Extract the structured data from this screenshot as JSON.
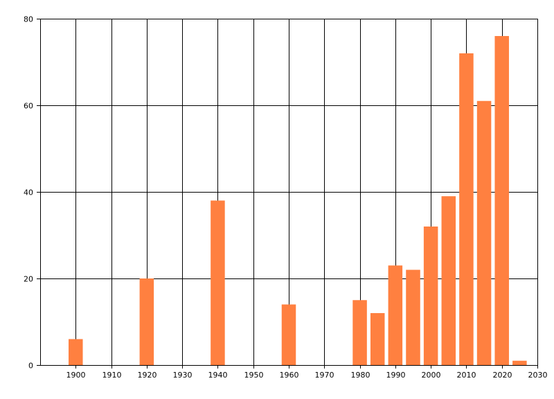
{
  "chart_data": {
    "type": "bar",
    "title": "",
    "xlabel": "",
    "ylabel": "",
    "x": [
      1900,
      1920,
      1940,
      1960,
      1980,
      1985,
      1990,
      1995,
      2000,
      2005,
      2010,
      2015,
      2020,
      2025
    ],
    "values": [
      6,
      20,
      38,
      14,
      15,
      12,
      23,
      22,
      32,
      39,
      72,
      61,
      76,
      1
    ],
    "bar_width_years": 4,
    "xlim": [
      1890,
      2030
    ],
    "ylim": [
      0,
      80
    ],
    "xticks": [
      1900,
      1910,
      1920,
      1930,
      1940,
      1950,
      1960,
      1970,
      1980,
      1990,
      2000,
      2010,
      2020,
      2030
    ],
    "yticks": [
      0,
      20,
      40,
      60,
      80
    ],
    "grid": true,
    "bar_color": "#ff8040",
    "grid_color": "#000000"
  }
}
